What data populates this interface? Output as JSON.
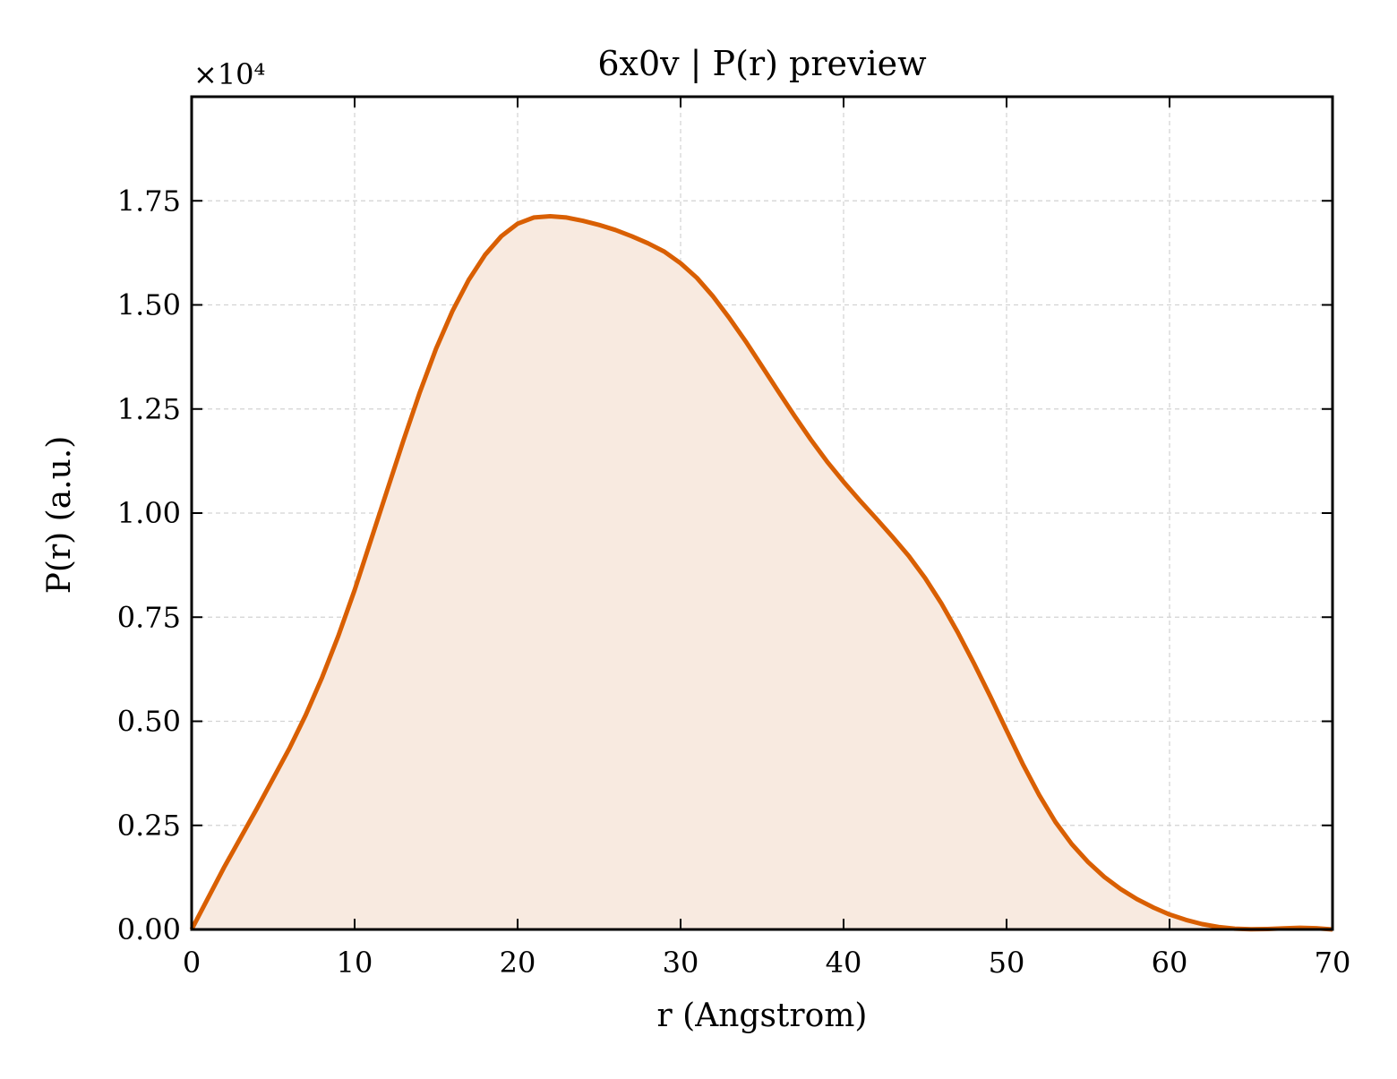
{
  "chart_data": {
    "type": "area",
    "title": "6x0v | P(r) preview",
    "xlabel": "r (Angstrom)",
    "ylabel": "P(r) (a.u.)",
    "y_offset_label": "×10⁴",
    "xlim": [
      0,
      70
    ],
    "ylim": [
      0,
      20000
    ],
    "xticks": [
      0,
      10,
      20,
      30,
      40,
      50,
      60,
      70
    ],
    "xtick_labels": [
      "0",
      "10",
      "20",
      "30",
      "40",
      "50",
      "60",
      "70"
    ],
    "yticks": [
      0,
      2500,
      5000,
      7500,
      10000,
      12500,
      15000,
      17500
    ],
    "ytick_labels": [
      "0.00",
      "0.25",
      "0.50",
      "0.75",
      "1.00",
      "1.25",
      "1.50",
      "1.75"
    ],
    "grid": true,
    "series": [
      {
        "color": "#d95f02",
        "fill_color": "#f8eae0",
        "x": [
          0,
          2,
          4,
          6,
          7,
          8,
          9,
          10,
          11,
          12,
          13,
          14,
          15,
          16,
          17,
          18,
          19,
          20,
          21,
          22,
          23,
          24,
          25,
          26,
          27,
          28,
          29,
          30,
          31,
          32,
          33,
          34,
          35,
          36,
          37,
          38,
          39,
          40,
          41,
          42,
          43,
          44,
          45,
          46,
          47,
          48,
          49,
          50,
          51,
          52,
          53,
          54,
          55,
          56,
          57,
          58,
          59,
          60,
          61,
          62,
          63,
          64,
          65,
          66,
          67,
          68,
          69,
          70
        ],
        "y": [
          0,
          1500,
          2900,
          4350,
          5150,
          6050,
          7050,
          8150,
          9350,
          10550,
          11750,
          12900,
          13950,
          14850,
          15600,
          16200,
          16650,
          16950,
          17100,
          17130,
          17100,
          17020,
          16920,
          16800,
          16650,
          16480,
          16280,
          16000,
          15650,
          15200,
          14680,
          14120,
          13520,
          12920,
          12330,
          11760,
          11230,
          10750,
          10300,
          9870,
          9430,
          8970,
          8440,
          7830,
          7140,
          6390,
          5600,
          4780,
          3970,
          3230,
          2580,
          2050,
          1620,
          1260,
          970,
          730,
          530,
          360,
          230,
          130,
          60,
          20,
          5,
          10,
          25,
          40,
          30,
          0
        ]
      }
    ]
  }
}
